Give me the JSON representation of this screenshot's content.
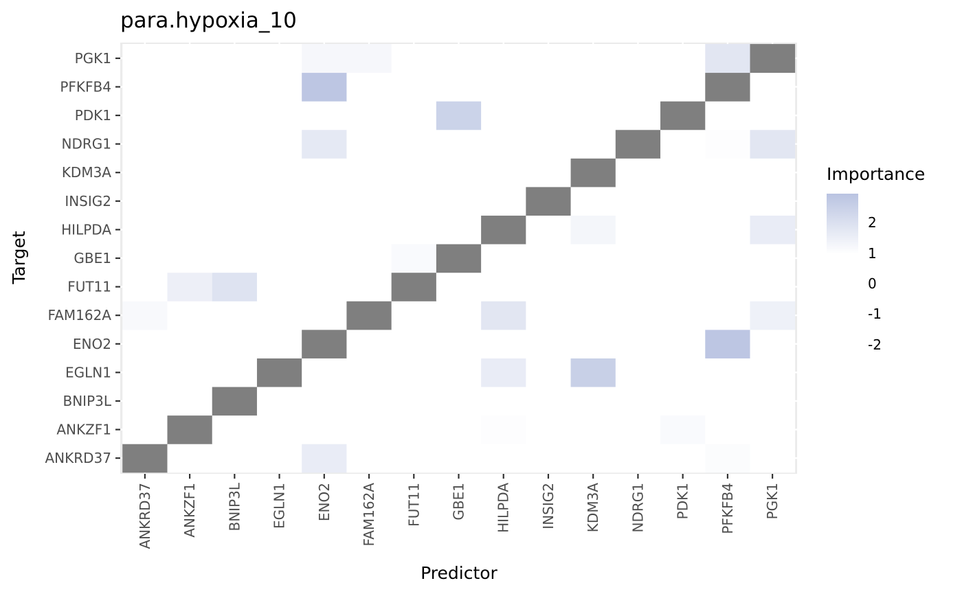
{
  "chart_data": {
    "type": "heatmap",
    "title": "para.hypoxia_10",
    "xlabel": "Predictor",
    "ylabel": "Target",
    "predictors": [
      "ANKRD37",
      "ANKZF1",
      "BNIP3L",
      "EGLN1",
      "ENO2",
      "FAM162A",
      "FUT11",
      "GBE1",
      "HILPDA",
      "INSIG2",
      "KDM3A",
      "NDRG1",
      "PDK1",
      "PFKFB4",
      "PGK1"
    ],
    "targets": [
      "ANKRD37",
      "ANKZF1",
      "BNIP3L",
      "EGLN1",
      "ENO2",
      "FAM162A",
      "FUT11",
      "GBE1",
      "HILPDA",
      "INSIG2",
      "KDM3A",
      "NDRG1",
      "PDK1",
      "PFKFB4",
      "PGK1"
    ],
    "diagonal_color": "#7f7f7f",
    "color_low": "#ffffff",
    "color_high": "#b9c3e1",
    "scale_min": 1,
    "scale_max": 2.9,
    "cells": [
      {
        "predictor": "ENO2",
        "target": "PGK1",
        "value": 1.25
      },
      {
        "predictor": "FAM162A",
        "target": "PGK1",
        "value": 1.25
      },
      {
        "predictor": "PFKFB4",
        "target": "PGK1",
        "value": 1.8
      },
      {
        "predictor": "ENO2",
        "target": "PFKFB4",
        "value": 2.8
      },
      {
        "predictor": "GBE1",
        "target": "PDK1",
        "value": 2.4
      },
      {
        "predictor": "ENO2",
        "target": "NDRG1",
        "value": 1.7
      },
      {
        "predictor": "PFKFB4",
        "target": "NDRG1",
        "value": 1.05
      },
      {
        "predictor": "PGK1",
        "target": "NDRG1",
        "value": 1.8
      },
      {
        "predictor": "KDM3A",
        "target": "HILPDA",
        "value": 1.3
      },
      {
        "predictor": "PGK1",
        "target": "HILPDA",
        "value": 1.6
      },
      {
        "predictor": "FUT11",
        "target": "GBE1",
        "value": 1.15
      },
      {
        "predictor": "ANKZF1",
        "target": "FUT11",
        "value": 1.5
      },
      {
        "predictor": "BNIP3L",
        "target": "FUT11",
        "value": 1.9
      },
      {
        "predictor": "ANKRD37",
        "target": "FAM162A",
        "value": 1.2
      },
      {
        "predictor": "HILPDA",
        "target": "FAM162A",
        "value": 1.8
      },
      {
        "predictor": "PGK1",
        "target": "FAM162A",
        "value": 1.45
      },
      {
        "predictor": "PFKFB4",
        "target": "ENO2",
        "value": 2.8
      },
      {
        "predictor": "HILPDA",
        "target": "EGLN1",
        "value": 1.6
      },
      {
        "predictor": "KDM3A",
        "target": "EGLN1",
        "value": 2.5
      },
      {
        "predictor": "HILPDA",
        "target": "ANKZF1",
        "value": 1.06
      },
      {
        "predictor": "PDK1",
        "target": "ANKZF1",
        "value": 1.15
      },
      {
        "predictor": "ENO2",
        "target": "ANKRD37",
        "value": 1.6
      },
      {
        "predictor": "PFKFB4",
        "target": "ANKRD37",
        "value": 1.1
      }
    ],
    "legend": {
      "title": "Importance",
      "labels": [
        "2",
        "1",
        "0",
        "-1",
        "-2"
      ],
      "placement": "right"
    },
    "grid": true
  }
}
